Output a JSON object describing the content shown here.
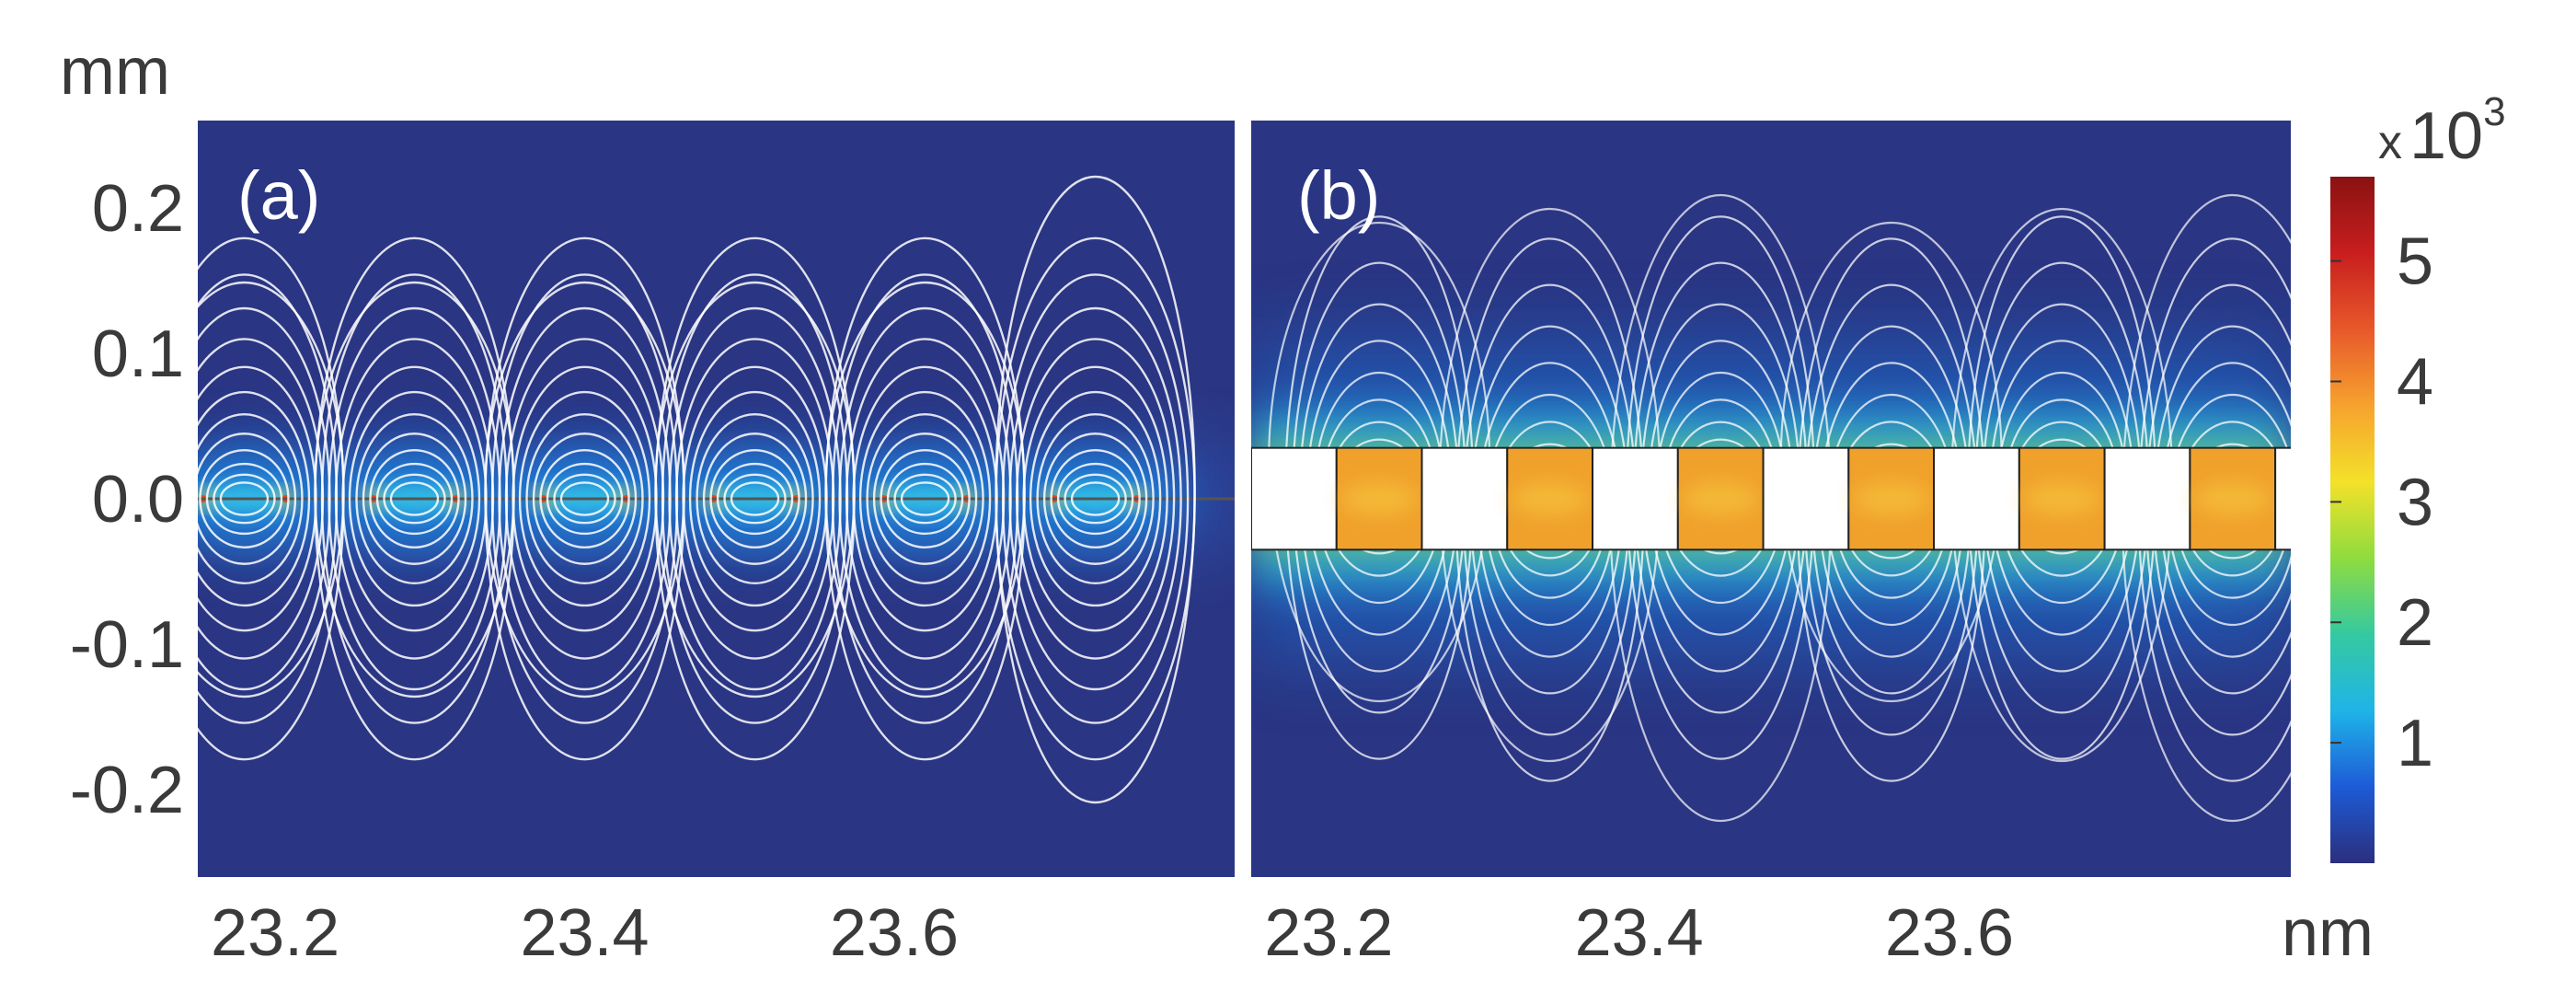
{
  "chart_data": [
    {
      "type": "heatmap",
      "panel_label": "(a)",
      "y_unit": "mm",
      "y_ticks": [
        "0.2",
        "0.1",
        "0.0",
        "-0.1",
        "-0.2"
      ],
      "y_tick_values": [
        0.2,
        0.1,
        0.0,
        -0.1,
        -0.2
      ],
      "ylim": [
        -0.26,
        0.26
      ],
      "x_ticks": [
        "23.2",
        "23.4",
        "23.6"
      ],
      "x_tick_values": [
        23.2,
        23.4,
        23.6
      ],
      "xlim": [
        23.15,
        23.82
      ],
      "period": 0.11,
      "spot_centers_x": [
        23.18,
        23.29,
        23.4,
        23.51,
        23.62,
        23.73
      ],
      "grating": false
    },
    {
      "type": "heatmap",
      "panel_label": "(b)",
      "x_ticks": [
        "23.2",
        "23.4",
        "23.6"
      ],
      "x_tick_values": [
        23.2,
        23.4,
        23.6
      ],
      "xlim": [
        23.15,
        23.82
      ],
      "x_unit": "nm",
      "ylim": [
        -0.26,
        0.26
      ],
      "grating": true,
      "grating_y_range": [
        -0.035,
        0.035
      ],
      "block_period": 0.11,
      "block_start": 23.15,
      "colorbar": {
        "multiplier_prefix": "x",
        "multiplier_base": "10",
        "multiplier_exp": "3",
        "ticks": [
          "1",
          "2",
          "3",
          "4",
          "5"
        ],
        "tick_values": [
          1,
          2,
          3,
          4,
          5
        ],
        "range": [
          0,
          5.7
        ],
        "colormap": [
          "#2b2f7e",
          "#1d5bd6",
          "#1fb4e8",
          "#35c9a0",
          "#8fdc3e",
          "#f4e12a",
          "#f6a22e",
          "#e8582a",
          "#c81e1e",
          "#8a1212"
        ]
      }
    }
  ],
  "colors": {
    "background_field": "#2a3583",
    "contour": "#ffffff",
    "axis_text": "#3a3a3a",
    "block": "#ffffff"
  }
}
